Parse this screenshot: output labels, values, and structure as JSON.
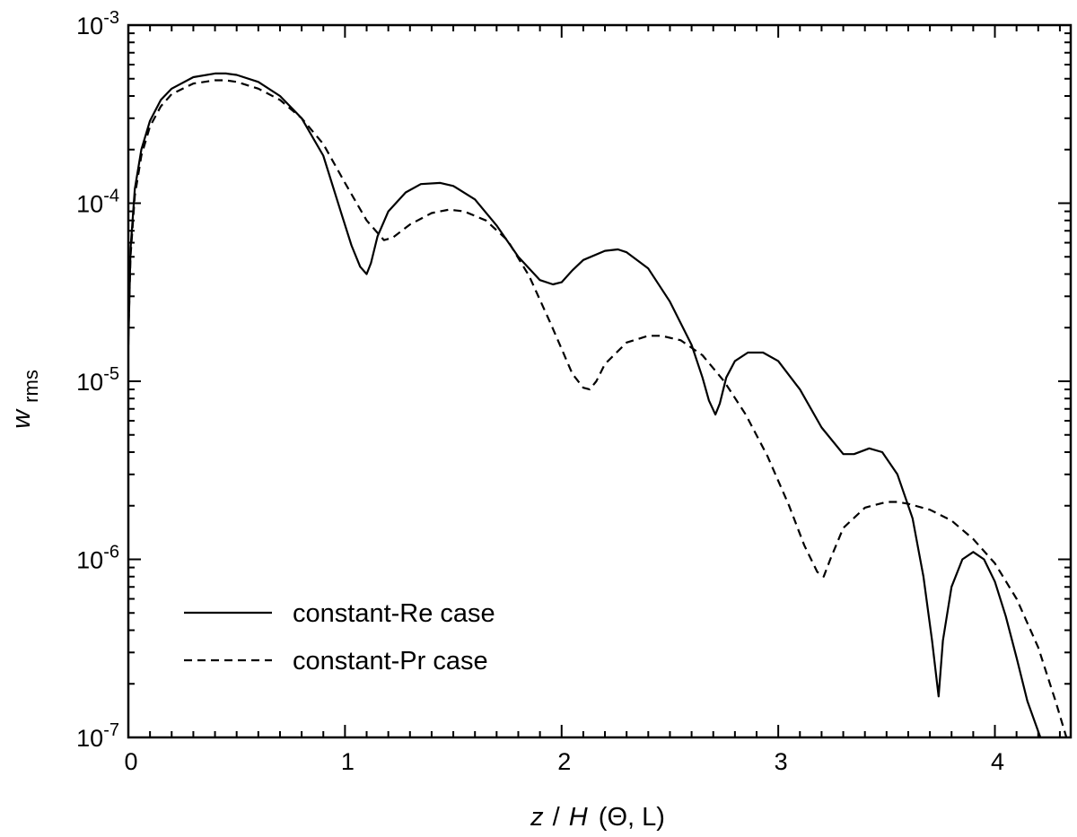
{
  "chart_data": {
    "type": "line",
    "title": "",
    "xlabel": {
      "var": "z",
      "sep": "/",
      "fn": "H",
      "args": "(Θ, L)"
    },
    "ylabel": {
      "base": "w",
      "sub": "rms"
    },
    "xlim": [
      0,
      4.35
    ],
    "ylim": [
      1e-07,
      0.001
    ],
    "yscale": "log",
    "grid": false,
    "legend_position": "bottom-left",
    "x_ticks": [
      {
        "value": 0,
        "label": "0"
      },
      {
        "value": 1,
        "label": "1"
      },
      {
        "value": 2,
        "label": "2"
      },
      {
        "value": 3,
        "label": "3"
      },
      {
        "value": 4,
        "label": "4"
      }
    ],
    "y_ticks": [
      {
        "value": 1e-07,
        "base": "10",
        "exp": "-7"
      },
      {
        "value": 1e-06,
        "base": "10",
        "exp": "-6"
      },
      {
        "value": 1e-05,
        "base": "10",
        "exp": "-5"
      },
      {
        "value": 0.0001,
        "base": "10",
        "exp": "-4"
      },
      {
        "value": 0.001,
        "base": "10",
        "exp": "-3"
      }
    ],
    "series": [
      {
        "name": "constant-Re case",
        "dash": "solid",
        "x": [
          0.0,
          0.01,
          0.03,
          0.06,
          0.1,
          0.15,
          0.2,
          0.3,
          0.4,
          0.45,
          0.5,
          0.6,
          0.7,
          0.8,
          0.9,
          0.98,
          1.03,
          1.07,
          1.1,
          1.12,
          1.15,
          1.2,
          1.28,
          1.35,
          1.44,
          1.5,
          1.6,
          1.7,
          1.8,
          1.9,
          1.96,
          2.0,
          2.05,
          2.1,
          2.2,
          2.26,
          2.3,
          2.4,
          2.5,
          2.6,
          2.65,
          2.68,
          2.71,
          2.73,
          2.76,
          2.8,
          2.86,
          2.93,
          3.0,
          3.1,
          3.2,
          3.3,
          3.35,
          3.42,
          3.48,
          3.55,
          3.62,
          3.67,
          3.71,
          3.74,
          3.76,
          3.8,
          3.85,
          3.9,
          3.95,
          4.0,
          4.05,
          4.1,
          4.15,
          4.21
        ],
        "y": [
          1.6e-05,
          5.5e-05,
          0.00012,
          0.0002,
          0.00029,
          0.00038,
          0.00044,
          0.00051,
          0.000535,
          0.000535,
          0.000525,
          0.00048,
          0.0004,
          0.0003,
          0.000185,
          9e-05,
          5.8e-05,
          4.4e-05,
          4e-05,
          4.6e-05,
          6.5e-05,
          9e-05,
          0.000115,
          0.000128,
          0.00013,
          0.000125,
          0.000105,
          7.5e-05,
          5e-05,
          3.7e-05,
          3.5e-05,
          3.6e-05,
          4.2e-05,
          4.8e-05,
          5.4e-05,
          5.5e-05,
          5.3e-05,
          4.3e-05,
          2.8e-05,
          1.6e-05,
          1.05e-05,
          7.8e-06,
          6.5e-06,
          7.5e-06,
          1.05e-05,
          1.3e-05,
          1.45e-05,
          1.45e-05,
          1.3e-05,
          9e-06,
          5.5e-06,
          3.9e-06,
          3.9e-06,
          4.2e-06,
          4e-06,
          3e-06,
          1.7e-06,
          8e-07,
          3.5e-07,
          1.7e-07,
          3.5e-07,
          7e-07,
          1e-06,
          1.1e-06,
          1e-06,
          7.5e-07,
          4.8e-07,
          2.8e-07,
          1.6e-07,
          1e-07
        ]
      },
      {
        "name": "constant-Pr case",
        "dash": "dashed",
        "x": [
          0.0,
          0.01,
          0.03,
          0.06,
          0.1,
          0.15,
          0.2,
          0.3,
          0.4,
          0.45,
          0.5,
          0.6,
          0.7,
          0.8,
          0.9,
          1.0,
          1.1,
          1.18,
          1.22,
          1.3,
          1.4,
          1.48,
          1.55,
          1.65,
          1.75,
          1.85,
          1.95,
          2.05,
          2.1,
          2.13,
          2.16,
          2.2,
          2.3,
          2.4,
          2.46,
          2.55,
          2.65,
          2.75,
          2.85,
          2.95,
          3.05,
          3.12,
          3.18,
          3.21,
          3.24,
          3.3,
          3.4,
          3.5,
          3.55,
          3.6,
          3.7,
          3.8,
          3.9,
          4.0,
          4.1,
          4.2,
          4.28,
          4.33
        ],
        "y": [
          1.8e-05,
          5e-05,
          0.00011,
          0.000185,
          0.00027,
          0.00035,
          0.00041,
          0.00047,
          0.00049,
          0.00049,
          0.00048,
          0.00044,
          0.00038,
          0.0003,
          0.000215,
          0.00013,
          8e-05,
          6.2e-05,
          6.4e-05,
          7.6e-05,
          8.8e-05,
          9.2e-05,
          9e-05,
          8e-05,
          6.2e-05,
          3.9e-05,
          2.1e-05,
          1.1e-05,
          9.2e-06,
          9e-06,
          1e-05,
          1.25e-05,
          1.65e-05,
          1.8e-05,
          1.8e-05,
          1.7e-05,
          1.4e-05,
          1e-05,
          6.5e-06,
          3.8e-06,
          2e-06,
          1.2e-06,
          8.5e-07,
          8e-07,
          1e-06,
          1.5e-06,
          1.95e-06,
          2.1e-06,
          2.1e-06,
          2.05e-06,
          1.9e-06,
          1.65e-06,
          1.3e-06,
          9.5e-07,
          6e-07,
          3.2e-07,
          1.6e-07,
          1e-07
        ]
      }
    ]
  }
}
